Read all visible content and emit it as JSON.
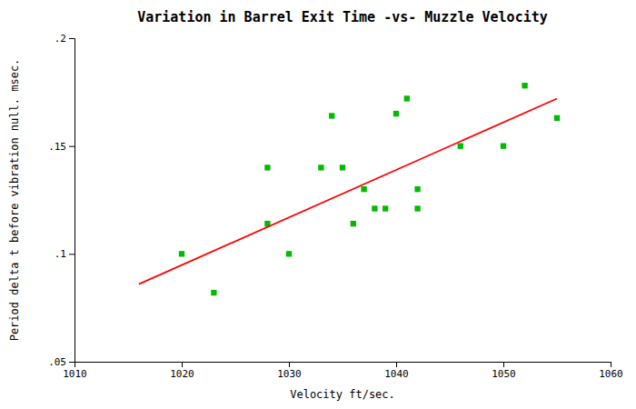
{
  "chart_data": {
    "type": "scatter",
    "title": "Variation in Barrel Exit Time -vs- Muzzle Velocity",
    "xlabel": "Velocity ft/sec.",
    "ylabel": "Period delta t before vibration null. msec.",
    "xlim": [
      1010,
      1060
    ],
    "ylim": [
      0.05,
      0.2
    ],
    "xticks": [
      1010,
      1020,
      1030,
      1040,
      1050,
      1060
    ],
    "yticks": [
      {
        "value": 0.05,
        "label": ".05"
      },
      {
        "value": 0.1,
        "label": ".1"
      },
      {
        "value": 0.15,
        "label": ".15"
      },
      {
        "value": 0.2,
        "label": ".2"
      }
    ],
    "grid": false,
    "series": [
      {
        "type": "scatter",
        "marker": "square",
        "color": "#00bb00",
        "x": [
          1020,
          1023,
          1028,
          1028,
          1030,
          1033,
          1034,
          1035,
          1036,
          1037,
          1038,
          1039,
          1040,
          1041,
          1042,
          1042,
          1046,
          1050,
          1052,
          1055
        ],
        "values": [
          0.1,
          0.082,
          0.114,
          0.14,
          0.1,
          0.14,
          0.164,
          0.14,
          0.114,
          0.13,
          0.121,
          0.121,
          0.165,
          0.172,
          0.13,
          0.121,
          0.15,
          0.15,
          0.178,
          0.163
        ]
      },
      {
        "type": "line",
        "color": "#ff0000",
        "x": [
          1016,
          1055
        ],
        "values": [
          0.086,
          0.172
        ]
      }
    ]
  }
}
